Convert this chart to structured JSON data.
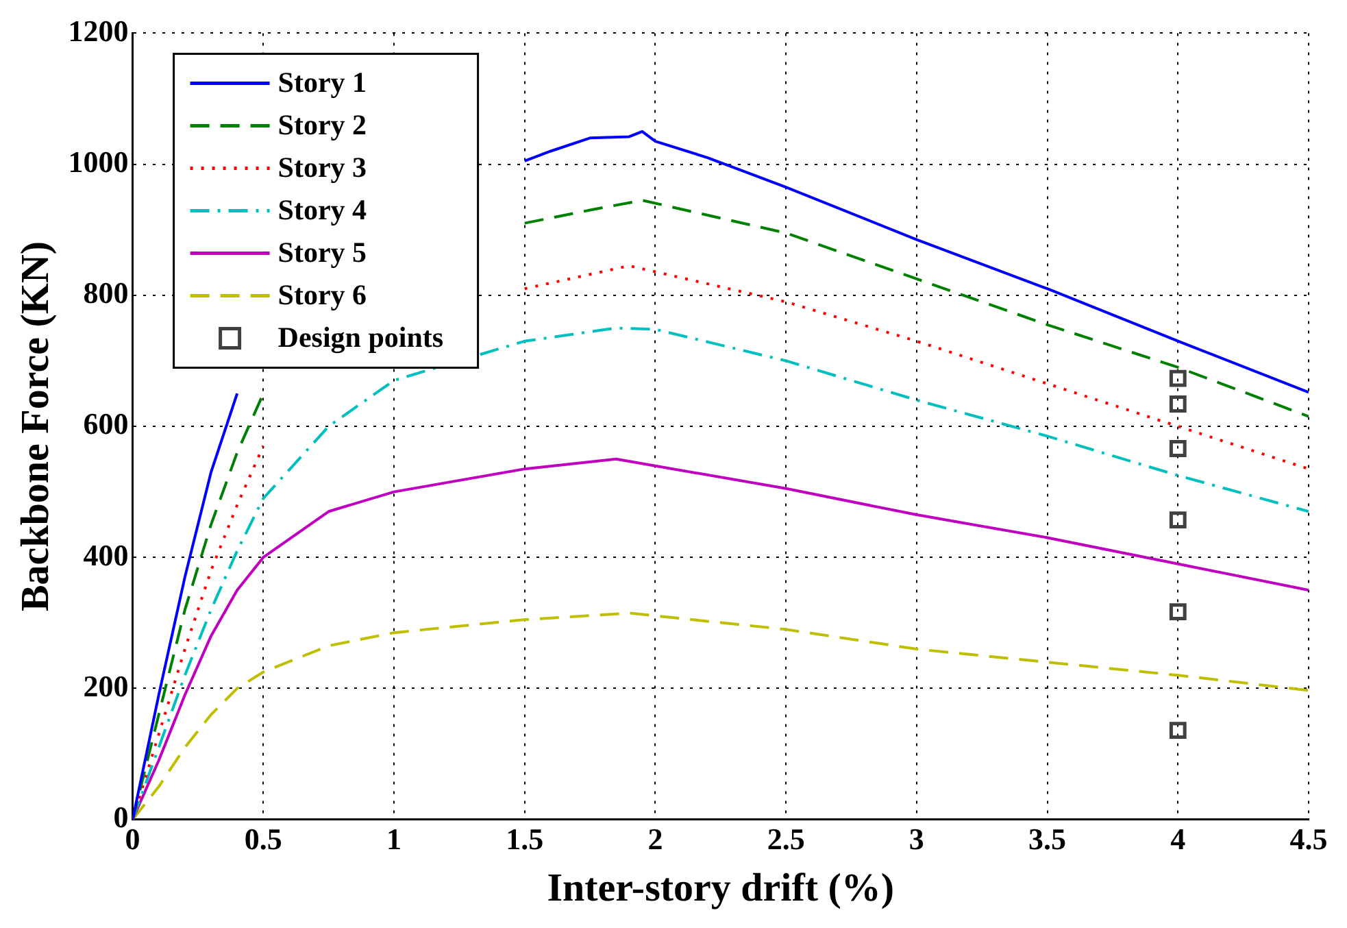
{
  "chart_data": {
    "type": "line",
    "xlabel": "Inter-story drift (%)",
    "ylabel": "Backbone Force (KN)",
    "xlim": [
      0,
      4.5
    ],
    "xticks": [
      0,
      0.5,
      1,
      1.5,
      2,
      2.5,
      3,
      3.5,
      4,
      4.5
    ],
    "ylim": [
      0,
      1200
    ],
    "yticks": [
      0,
      200,
      400,
      600,
      800,
      1000,
      1200
    ],
    "grid": true,
    "legend": "top left",
    "marker": "none",
    "series": [
      {
        "name": "Story 1",
        "color": "#0000ff",
        "line_style": "solid",
        "x": [
          0,
          0.1,
          0.2,
          0.3,
          0.4,
          0.5,
          0.75,
          1,
          1.25,
          1.5,
          1.6,
          1.75,
          1.9,
          1.95,
          2,
          2.2,
          2.5,
          3,
          3.5,
          4,
          4.5
        ],
        "values": [
          0,
          190,
          370,
          530,
          650,
          null,
          null,
          null,
          null,
          1005,
          1020,
          1040,
          1042,
          1050,
          1035,
          1010,
          965,
          885,
          810,
          730,
          652
        ]
      },
      {
        "name": "Story 2",
        "color": "#008000",
        "line_style": "dashed",
        "x": [
          0,
          0.1,
          0.2,
          0.3,
          0.4,
          0.5,
          0.75,
          1,
          1.25,
          1.5,
          1.75,
          1.95,
          2.5,
          3,
          3.5,
          4,
          4.5
        ],
        "values": [
          0,
          160,
          320,
          450,
          560,
          650,
          null,
          null,
          null,
          910,
          930,
          945,
          895,
          825,
          755,
          690,
          615
        ]
      },
      {
        "name": "Story 3",
        "color": "#ff0000",
        "line_style": "dotted",
        "x": [
          0,
          0.1,
          0.2,
          0.3,
          0.4,
          0.5,
          0.75,
          1,
          1.5,
          1.9,
          2.5,
          3,
          3.5,
          4,
          4.5
        ],
        "values": [
          0,
          130,
          260,
          380,
          480,
          570,
          null,
          null,
          810,
          845,
          790,
          730,
          665,
          600,
          535
        ]
      },
      {
        "name": "Story 4",
        "color": "#00bfbf",
        "line_style": "dashdot",
        "x": [
          0,
          0.1,
          0.2,
          0.3,
          0.4,
          0.5,
          0.75,
          1,
          1.5,
          1.85,
          2,
          2.5,
          3,
          3.5,
          4,
          4.5
        ],
        "values": [
          0,
          110,
          220,
          320,
          410,
          490,
          600,
          670,
          730,
          750,
          748,
          700,
          640,
          585,
          525,
          470
        ]
      },
      {
        "name": "Story 5",
        "color": "#bf00bf",
        "line_style": "solid",
        "x": [
          0,
          0.1,
          0.2,
          0.3,
          0.4,
          0.5,
          0.75,
          1,
          1.5,
          1.85,
          2.5,
          3,
          3.5,
          4,
          4.5
        ],
        "values": [
          0,
          90,
          190,
          280,
          350,
          400,
          470,
          500,
          535,
          550,
          505,
          465,
          430,
          390,
          350
        ]
      },
      {
        "name": "Story 6",
        "color": "#bfbf00",
        "line_style": "dashed",
        "x": [
          0,
          0.1,
          0.2,
          0.3,
          0.4,
          0.5,
          0.75,
          1,
          1.5,
          1.9,
          2.5,
          3,
          3.5,
          4,
          4.5
        ],
        "values": [
          0,
          50,
          110,
          160,
          200,
          225,
          265,
          285,
          305,
          315,
          290,
          260,
          240,
          220,
          197
        ]
      },
      {
        "name": "Design points",
        "type": "scatter",
        "marker": "square",
        "color": "#404040",
        "x": [
          4,
          4,
          4,
          4,
          4,
          4
        ],
        "values": [
          673,
          634,
          566,
          457,
          317,
          136
        ]
      }
    ]
  }
}
